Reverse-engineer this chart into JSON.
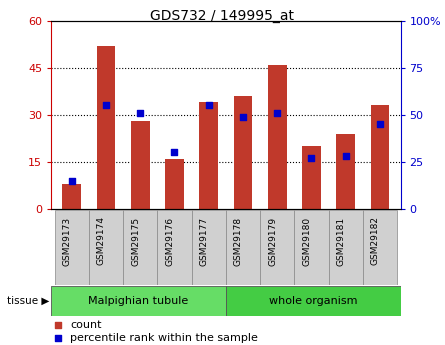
{
  "title": "GDS732 / 149995_at",
  "categories": [
    "GSM29173",
    "GSM29174",
    "GSM29175",
    "GSM29176",
    "GSM29177",
    "GSM29178",
    "GSM29179",
    "GSM29180",
    "GSM29181",
    "GSM29182"
  ],
  "counts": [
    8,
    52,
    28,
    16,
    34,
    36,
    46,
    20,
    24,
    33
  ],
  "percentiles": [
    15,
    55,
    51,
    30,
    55,
    49,
    51,
    27,
    28,
    45
  ],
  "bar_color": "#c0392b",
  "dot_color": "#0000cd",
  "left_ylim": [
    0,
    60
  ],
  "right_ylim": [
    0,
    100
  ],
  "left_yticks": [
    0,
    15,
    30,
    45,
    60
  ],
  "right_yticks": [
    0,
    25,
    50,
    75,
    100
  ],
  "right_yticklabels": [
    "0",
    "25",
    "50",
    "75",
    "100%"
  ],
  "tick_label_color_left": "#cc0000",
  "tick_label_color_right": "#0000cc",
  "tissue_groups": [
    {
      "label": "Malpighian tubule",
      "start": 0,
      "end": 5,
      "color": "#66dd66"
    },
    {
      "label": "whole organism",
      "start": 5,
      "end": 10,
      "color": "#44cc44"
    }
  ],
  "tissue_label": "tissue",
  "legend_count_label": "count",
  "legend_pct_label": "percentile rank within the sample",
  "bar_width": 0.55,
  "tick_box_color": "#d0d0d0",
  "tick_box_edge": "#888888"
}
